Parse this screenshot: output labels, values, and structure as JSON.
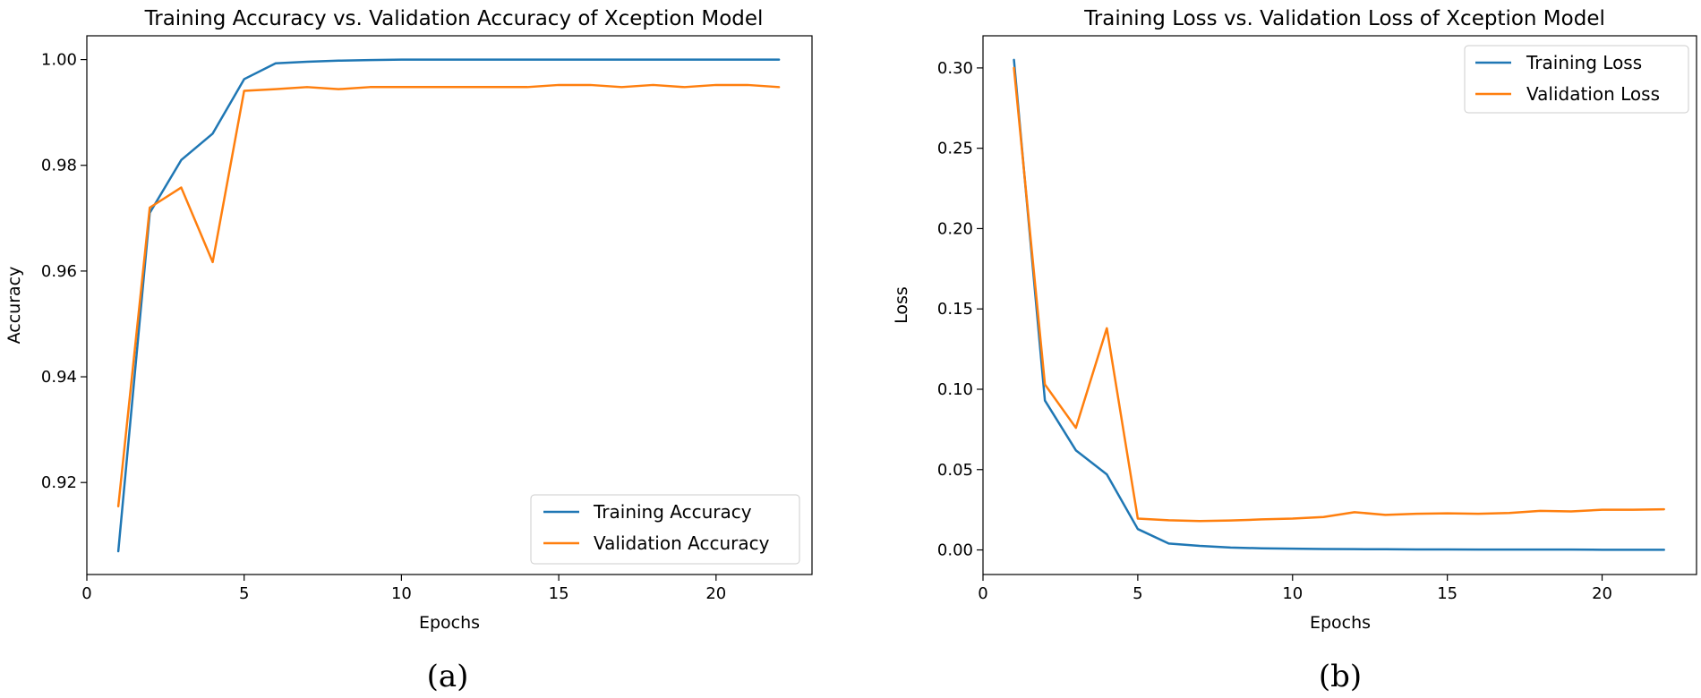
{
  "colors": {
    "training": "#1f77b4",
    "validation": "#ff7f0e"
  },
  "chart_data": [
    {
      "type": "line",
      "caption": "(a)",
      "title": "Training Accuracy vs. Validation Accuracy of Xception Model",
      "xlabel": "Epochs",
      "ylabel": "Accuracy",
      "xlim": [
        0,
        23.05
      ],
      "ylim": [
        0.9026,
        1.0045
      ],
      "xticks": [
        0,
        5,
        10,
        15,
        20
      ],
      "yticks": [
        0.92,
        0.94,
        0.96,
        0.98,
        1.0
      ],
      "ytick_labels": [
        "0.92",
        "0.94",
        "0.96",
        "0.98",
        "1.00"
      ],
      "legend_position": "lower-right",
      "x": [
        1,
        2,
        3,
        4,
        5,
        6,
        7,
        8,
        9,
        10,
        11,
        12,
        13,
        14,
        15,
        16,
        17,
        18,
        19,
        20,
        21,
        22
      ],
      "series": [
        {
          "name": "Training Accuracy",
          "color": "#1f77b4",
          "values": [
            0.907,
            0.971,
            0.981,
            0.986,
            0.9963,
            0.9993,
            0.9996,
            0.9998,
            0.9999,
            1.0,
            1.0,
            1.0,
            1.0,
            1.0,
            1.0,
            1.0,
            1.0,
            1.0,
            1.0,
            1.0,
            1.0,
            1.0
          ]
        },
        {
          "name": "Validation Accuracy",
          "color": "#ff7f0e",
          "values": [
            0.9155,
            0.972,
            0.9758,
            0.9617,
            0.9941,
            0.9944,
            0.9948,
            0.9944,
            0.9948,
            0.9948,
            0.9948,
            0.9948,
            0.9948,
            0.9948,
            0.9952,
            0.9952,
            0.9948,
            0.9952,
            0.9948,
            0.9952,
            0.9952,
            0.9948
          ]
        }
      ]
    },
    {
      "type": "line",
      "caption": "(b)",
      "title": "Training Loss vs. Validation Loss of Xception Model",
      "xlabel": "Epochs",
      "ylabel": "Loss",
      "xlim": [
        0,
        23.05
      ],
      "ylim": [
        -0.0153,
        0.32
      ],
      "xticks": [
        0,
        5,
        10,
        15,
        20
      ],
      "yticks": [
        0.0,
        0.05,
        0.1,
        0.15,
        0.2,
        0.25,
        0.3
      ],
      "ytick_labels": [
        "0.00",
        "0.05",
        "0.10",
        "0.15",
        "0.20",
        "0.25",
        "0.30"
      ],
      "legend_position": "upper-right",
      "x": [
        1,
        2,
        3,
        4,
        5,
        6,
        7,
        8,
        9,
        10,
        11,
        12,
        13,
        14,
        15,
        16,
        17,
        18,
        19,
        20,
        21,
        22
      ],
      "series": [
        {
          "name": "Training Loss",
          "color": "#1f77b4",
          "values": [
            0.305,
            0.093,
            0.062,
            0.047,
            0.013,
            0.004,
            0.0025,
            0.0015,
            0.001,
            0.0008,
            0.0006,
            0.0005,
            0.0004,
            0.0003,
            0.0003,
            0.0002,
            0.0002,
            0.0002,
            0.0002,
            0.0001,
            0.0001,
            0.0001
          ]
        },
        {
          "name": "Validation Loss",
          "color": "#ff7f0e",
          "values": [
            0.3,
            0.103,
            0.076,
            0.138,
            0.0195,
            0.0185,
            0.018,
            0.0183,
            0.019,
            0.0195,
            0.0205,
            0.0235,
            0.0218,
            0.0225,
            0.0228,
            0.0225,
            0.023,
            0.0243,
            0.024,
            0.025,
            0.025,
            0.0253
          ]
        }
      ]
    }
  ]
}
